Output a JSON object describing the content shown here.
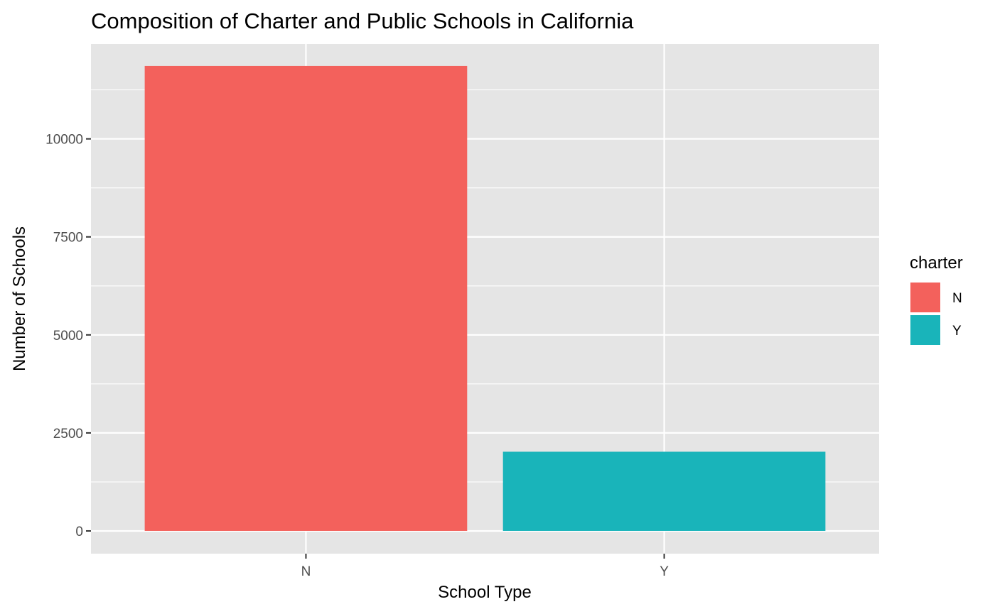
{
  "chart_data": {
    "type": "bar",
    "title": "Composition of Charter and Public Schools in California",
    "xlabel": "School Type",
    "ylabel": "Number of Schools",
    "categories": [
      "N",
      "Y"
    ],
    "values": [
      11860,
      2020
    ],
    "ylim": [
      -580,
      12420
    ],
    "yticks": [
      0,
      2500,
      5000,
      7500,
      10000
    ],
    "ytick_labels": [
      "0",
      "2500",
      "5000",
      "7500",
      "10000"
    ],
    "grid": true,
    "panel_background": "#E5E5E5",
    "grid_color": "#FFFFFF",
    "colors": {
      "N": "#F3615C",
      "Y": "#19B4BA"
    },
    "legend": {
      "title": "charter",
      "placement": "right",
      "items": [
        {
          "label": "N",
          "color": "#F3615C"
        },
        {
          "label": "Y",
          "color": "#19B4BA"
        }
      ]
    }
  }
}
